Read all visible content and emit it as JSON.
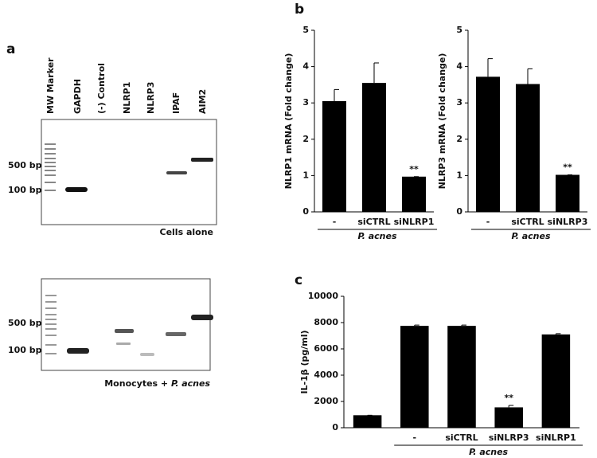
{
  "panel_labels": [
    "a",
    "b",
    "c"
  ],
  "gel": {
    "lanes": [
      "MW Marker",
      "GAPDH",
      "(-) Control",
      "NLRP1",
      "NLRP3",
      "IPAF",
      "AIM2"
    ],
    "panels": [
      {
        "markers": [
          "500 bp",
          "100 bp"
        ],
        "caption": "Cells alone"
      },
      {
        "markers": [
          "500 bp",
          "100 bp"
        ],
        "caption_prefix": "Monocytes + ",
        "caption_italic": "P. acnes"
      }
    ]
  },
  "chart_data": [
    {
      "type": "bar",
      "y_label": "NLRP1 mRNA (Fold change)",
      "categories": [
        "-",
        "siCTRL",
        "siNLRP1"
      ],
      "values": [
        3.05,
        3.55,
        0.97
      ],
      "errors": [
        0.32,
        0.55,
        0
      ],
      "significance": [
        null,
        null,
        "**"
      ],
      "group_label": "P. acnes",
      "color": "#000000",
      "ylim": [
        0,
        5
      ],
      "yticks": [
        0,
        1,
        2,
        3,
        4,
        5
      ]
    },
    {
      "type": "bar",
      "y_label": "NLRP3 mRNA (Fold change)",
      "categories": [
        "-",
        "siCTRL",
        "siNLRP3"
      ],
      "values": [
        3.72,
        3.52,
        1.02
      ],
      "errors": [
        0.5,
        0.42,
        0
      ],
      "significance": [
        null,
        null,
        "**"
      ],
      "group_label": "P. acnes",
      "color": "#000000",
      "ylim": [
        0,
        5
      ],
      "yticks": [
        0,
        1,
        2,
        3,
        4,
        5
      ]
    },
    {
      "type": "bar",
      "y_label": "IL-1β (pg/ml)",
      "categories": [
        null,
        "-",
        "siCTRL",
        "siNLRP3",
        "siNLRP1"
      ],
      "values": [
        950,
        7750,
        7750,
        1550,
        7100
      ],
      "errors": [
        0,
        60,
        60,
        150,
        60
      ],
      "significance": [
        null,
        null,
        null,
        "**",
        null
      ],
      "group_label": "P. acnes",
      "color": "#000000",
      "ylim": [
        0,
        10000
      ],
      "yticks": [
        0,
        2000,
        4000,
        6000,
        8000,
        10000
      ]
    }
  ]
}
